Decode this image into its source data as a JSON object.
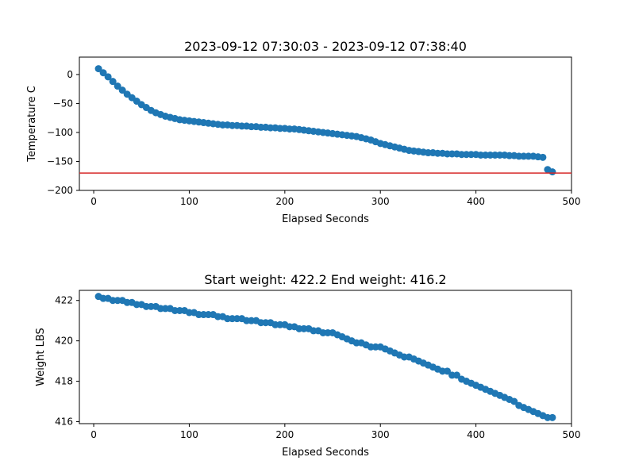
{
  "chart_data": [
    {
      "type": "scatter",
      "title": "2023-09-12 07:30:03 - 2023-09-12 07:38:40",
      "xlabel": "Elapsed Seconds",
      "ylabel": "Temperature C",
      "xlim": [
        -15,
        500
      ],
      "ylim": [
        -200,
        30
      ],
      "xticks": [
        0,
        100,
        200,
        300,
        400,
        500
      ],
      "yticks": [
        -200,
        -150,
        -100,
        -50,
        0
      ],
      "grid": false,
      "marker_color": "#1f77b4",
      "reference_line": {
        "y": -170,
        "color": "#d62728"
      },
      "x": [
        5,
        10,
        15,
        20,
        25,
        30,
        35,
        40,
        45,
        50,
        55,
        60,
        65,
        70,
        75,
        80,
        85,
        90,
        95,
        100,
        105,
        110,
        115,
        120,
        125,
        130,
        135,
        140,
        145,
        150,
        155,
        160,
        165,
        170,
        175,
        180,
        185,
        190,
        195,
        200,
        205,
        210,
        215,
        220,
        225,
        230,
        235,
        240,
        245,
        250,
        255,
        260,
        265,
        270,
        275,
        280,
        285,
        290,
        295,
        300,
        305,
        310,
        315,
        320,
        325,
        330,
        335,
        340,
        345,
        350,
        355,
        360,
        365,
        370,
        375,
        380,
        385,
        390,
        395,
        400,
        405,
        410,
        415,
        420,
        425,
        430,
        435,
        440,
        445,
        450,
        455,
        460,
        465,
        470,
        475,
        480
      ],
      "y": [
        10,
        3,
        -4,
        -12,
        -20,
        -27,
        -34,
        -40,
        -46,
        -52,
        -57,
        -62,
        -66,
        -69,
        -72,
        -74,
        -76,
        -78,
        -79,
        -80,
        -81,
        -82,
        -83,
        -84,
        -85,
        -86,
        -87,
        -87,
        -88,
        -88,
        -89,
        -89,
        -90,
        -90,
        -91,
        -91,
        -92,
        -92,
        -93,
        -93,
        -94,
        -94,
        -95,
        -96,
        -97,
        -98,
        -99,
        -100,
        -101,
        -102,
        -103,
        -104,
        -105,
        -106,
        -107,
        -109,
        -111,
        -113,
        -116,
        -119,
        -121,
        -123,
        -125,
        -127,
        -129,
        -131,
        -132,
        -133,
        -134,
        -135,
        -135,
        -136,
        -136,
        -137,
        -137,
        -137,
        -138,
        -138,
        -138,
        -138,
        -139,
        -139,
        -139,
        -139,
        -139,
        -139,
        -140,
        -140,
        -141,
        -141,
        -141,
        -141,
        -142,
        -143,
        -164,
        -168
      ]
    },
    {
      "type": "scatter",
      "title": "Start weight: 422.2 End weight: 416.2",
      "xlabel": "Elapsed Seconds",
      "ylabel": "Weight LBS",
      "xlim": [
        -15,
        500
      ],
      "ylim": [
        415.9,
        422.5
      ],
      "xticks": [
        0,
        100,
        200,
        300,
        400,
        500
      ],
      "yticks": [
        416,
        418,
        420,
        422
      ],
      "grid": false,
      "marker_color": "#1f77b4",
      "x": [
        5,
        10,
        15,
        20,
        25,
        30,
        35,
        40,
        45,
        50,
        55,
        60,
        65,
        70,
        75,
        80,
        85,
        90,
        95,
        100,
        105,
        110,
        115,
        120,
        125,
        130,
        135,
        140,
        145,
        150,
        155,
        160,
        165,
        170,
        175,
        180,
        185,
        190,
        195,
        200,
        205,
        210,
        215,
        220,
        225,
        230,
        235,
        240,
        245,
        250,
        255,
        260,
        265,
        270,
        275,
        280,
        285,
        290,
        295,
        300,
        305,
        310,
        315,
        320,
        325,
        330,
        335,
        340,
        345,
        350,
        355,
        360,
        365,
        370,
        375,
        380,
        385,
        390,
        395,
        400,
        405,
        410,
        415,
        420,
        425,
        430,
        435,
        440,
        445,
        450,
        455,
        460,
        465,
        470,
        475,
        480
      ],
      "y": [
        422.2,
        422.1,
        422.1,
        422.0,
        422.0,
        422.0,
        421.9,
        421.9,
        421.8,
        421.8,
        421.7,
        421.7,
        421.7,
        421.6,
        421.6,
        421.6,
        421.5,
        421.5,
        421.5,
        421.4,
        421.4,
        421.3,
        421.3,
        421.3,
        421.3,
        421.2,
        421.2,
        421.1,
        421.1,
        421.1,
        421.1,
        421.0,
        421.0,
        421.0,
        420.9,
        420.9,
        420.9,
        420.8,
        420.8,
        420.8,
        420.7,
        420.7,
        420.6,
        420.6,
        420.6,
        420.5,
        420.5,
        420.4,
        420.4,
        420.4,
        420.3,
        420.2,
        420.1,
        420.0,
        419.9,
        419.9,
        419.8,
        419.7,
        419.7,
        419.7,
        419.6,
        419.5,
        419.4,
        419.3,
        419.2,
        419.2,
        419.1,
        419.0,
        418.9,
        418.8,
        418.7,
        418.6,
        418.5,
        418.5,
        418.3,
        418.3,
        418.1,
        418.0,
        417.9,
        417.8,
        417.7,
        417.6,
        417.5,
        417.4,
        417.3,
        417.2,
        417.1,
        417.0,
        416.8,
        416.7,
        416.6,
        416.5,
        416.4,
        416.3,
        416.2,
        416.2
      ]
    }
  ]
}
